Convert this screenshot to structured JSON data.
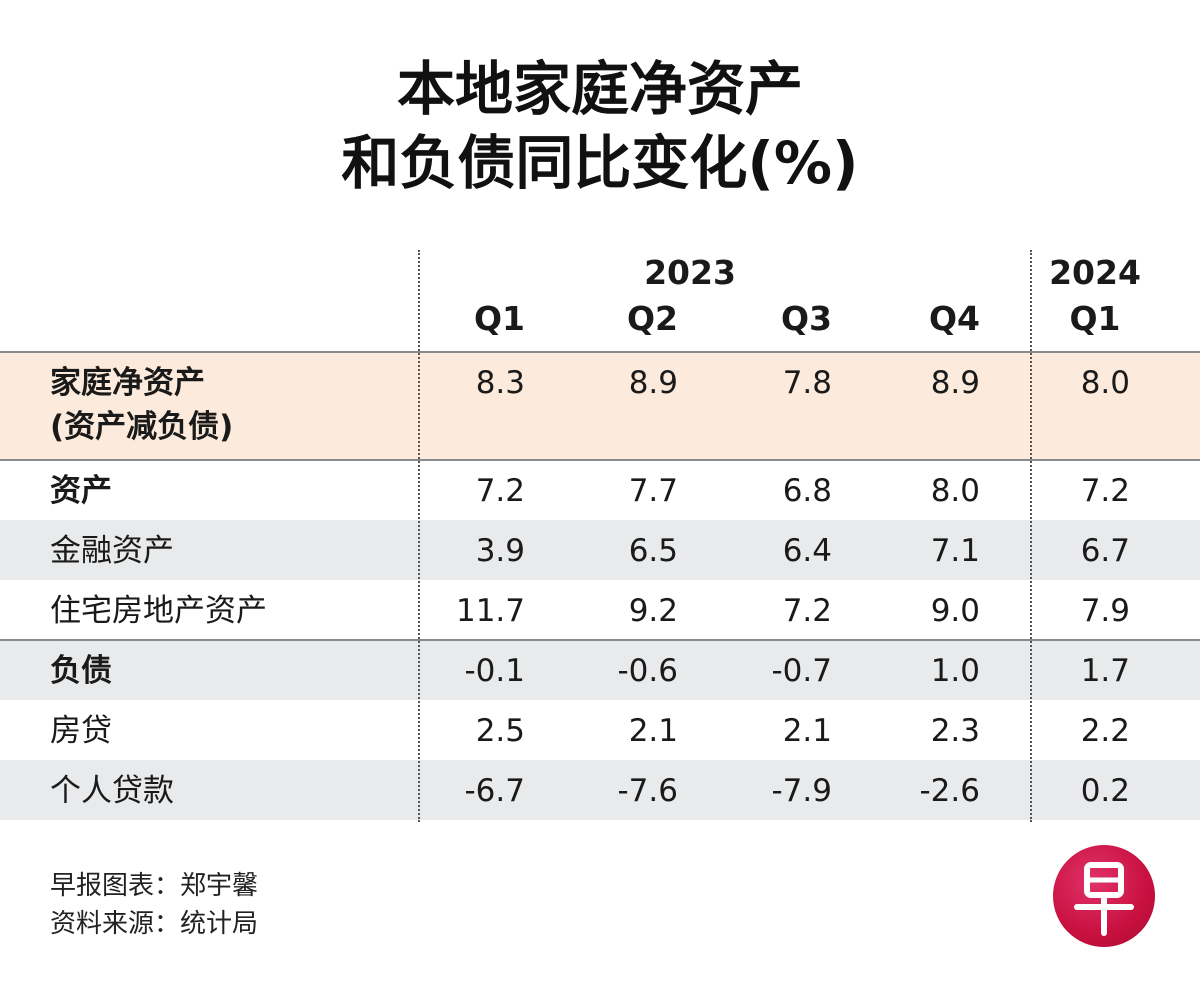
{
  "title": {
    "line1": "本地家庭净资产",
    "line2": "和负债同比变化(%)"
  },
  "chart_data": {
    "type": "table",
    "title": "本地家庭净资产和负债同比变化(%)",
    "column_groups": [
      {
        "label": "2023",
        "columns": [
          "Q1",
          "Q2",
          "Q3",
          "Q4"
        ]
      },
      {
        "label": "2024",
        "columns": [
          "Q1"
        ]
      }
    ],
    "rows": [
      {
        "label": "家庭净资产",
        "sublabel": "(资产减负债)",
        "bold": true,
        "highlight": true,
        "values": [
          "8.3",
          "8.9",
          "7.8",
          "8.9",
          "8.0"
        ]
      },
      {
        "label": "资产",
        "bold": true,
        "values": [
          "7.2",
          "7.7",
          "6.8",
          "8.0",
          "7.2"
        ]
      },
      {
        "label": "金融资产",
        "bold": false,
        "values": [
          "3.9",
          "6.5",
          "6.4",
          "7.1",
          "6.7"
        ]
      },
      {
        "label": "住宅房地产资产",
        "bold": false,
        "values": [
          "11.7",
          "9.2",
          "7.2",
          "9.0",
          "7.9"
        ]
      },
      {
        "label": "负债",
        "bold": true,
        "values": [
          "-0.1",
          "-0.6",
          "-0.7",
          "1.0",
          "1.7"
        ]
      },
      {
        "label": "房贷",
        "bold": false,
        "values": [
          "2.5",
          "2.1",
          "2.1",
          "2.3",
          "2.2"
        ]
      },
      {
        "label": "个人贷款",
        "bold": false,
        "values": [
          "-6.7",
          "-7.6",
          "-7.9",
          "-2.6",
          "0.2"
        ]
      }
    ]
  },
  "credits": {
    "chart_by": "早报图表：郑宇馨",
    "source": "资料来源：统计局"
  },
  "logo": {
    "text": "早",
    "color": "#c8103f"
  },
  "colors": {
    "highlight_row": "#fcebdc",
    "shaded_row": "#e9eaeb",
    "text": "#1a1a1a"
  }
}
